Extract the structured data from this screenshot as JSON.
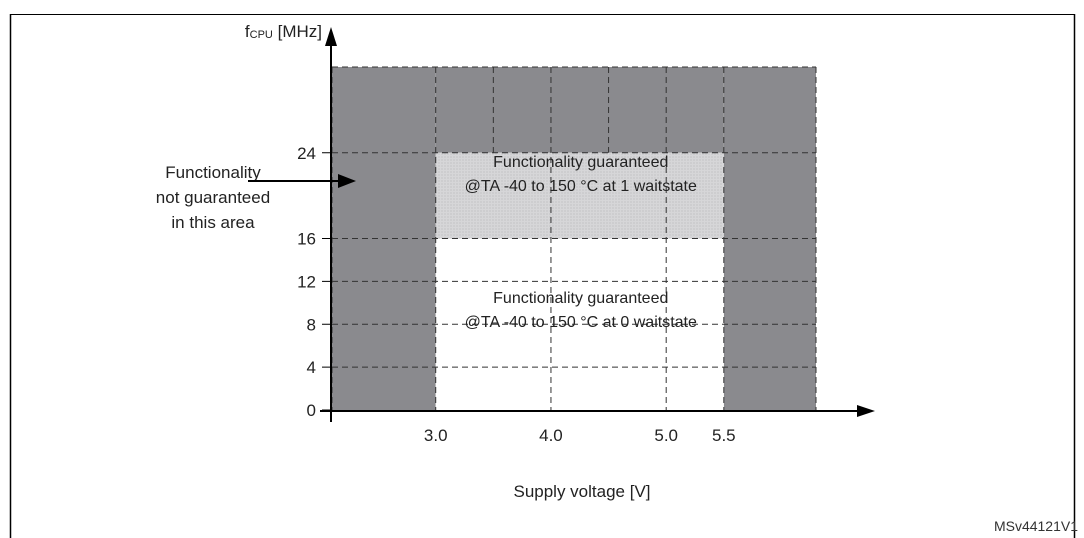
{
  "figure_id": "MSv44121V1",
  "chart_data": {
    "type": "area",
    "title": "",
    "ylabel_main": "f",
    "ylabel_sub": "CPU",
    "ylabel_unit": "[MHz]",
    "xlabel": "Supply voltage [V]",
    "x_ticks": [
      {
        "value": 3.0,
        "label": "3.0"
      },
      {
        "value": 4.0,
        "label": "4.0"
      },
      {
        "value": 5.0,
        "label": "5.0"
      },
      {
        "value": 5.5,
        "label": "5.5"
      }
    ],
    "y_ticks": [
      {
        "value": 0,
        "label": "0"
      },
      {
        "value": 4,
        "label": "4"
      },
      {
        "value": 8,
        "label": "8"
      },
      {
        "value": 12,
        "label": "12"
      },
      {
        "value": 16,
        "label": "16"
      },
      {
        "value": 24,
        "label": "24"
      }
    ],
    "xlim": [
      2.1,
      6.3
    ],
    "ylim": [
      0,
      32
    ],
    "regions": [
      {
        "name": "not-guaranteed-low-voltage",
        "x": [
          2.1,
          3.0
        ],
        "y": [
          0,
          32
        ],
        "color": "#8a8a8e"
      },
      {
        "name": "not-guaranteed-high-voltage",
        "x": [
          5.5,
          6.3
        ],
        "y": [
          0,
          32
        ],
        "color": "#8a8a8e"
      },
      {
        "name": "not-guaranteed-high-frequency",
        "x": [
          3.0,
          5.5
        ],
        "y": [
          24,
          32
        ],
        "color": "#8a8a8e"
      },
      {
        "name": "guaranteed-1-waitstate",
        "x": [
          3.0,
          5.5
        ],
        "y": [
          16,
          24
        ],
        "color": "#dadadc",
        "label_lines": [
          "Functionality guaranteed",
          "@TA -40 to 150 °C at 1 waitstate"
        ]
      },
      {
        "name": "guaranteed-0-waitstate",
        "x": [
          3.0,
          5.5
        ],
        "y": [
          0,
          16
        ],
        "color": "#ffffff",
        "label_lines": [
          "Functionality guaranteed",
          "@TA -40 to 150 °C at 0 waitstate"
        ]
      }
    ],
    "annotation": {
      "lines": [
        "Functionality",
        "not guaranteed",
        "in this area"
      ],
      "arrow_to": {
        "x": 2.3,
        "y": 20
      }
    },
    "grid": true,
    "legend": "none"
  }
}
